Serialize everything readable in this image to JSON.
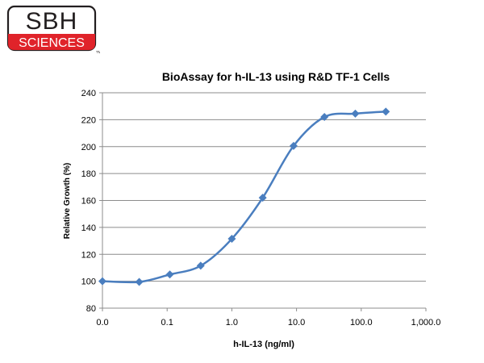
{
  "logo": {
    "line1": "SBH",
    "line2": "SCIENCES",
    "tm": "TM",
    "colors": {
      "red": "#e0232a",
      "dark": "#231f20"
    }
  },
  "chart_data": {
    "type": "line",
    "title": "BioAssay for h-IL-13 using R&D TF-1 Cells",
    "xlabel": "h-IL-13 (ng/ml)",
    "ylabel": "Relative Growth (%)",
    "x_scale": "log10",
    "xlim": [
      0.01,
      1000
    ],
    "ylim": [
      80,
      240
    ],
    "xticks": [
      0.01,
      0.1,
      1,
      10,
      100,
      1000
    ],
    "xtick_labels": [
      "0.0",
      "0.1",
      "1.0",
      "10.0",
      "100.0",
      "1,000.0"
    ],
    "yticks": [
      80,
      100,
      120,
      140,
      160,
      180,
      200,
      220,
      240
    ],
    "ytick_labels": [
      "80",
      "100",
      "120",
      "140",
      "160",
      "180",
      "200",
      "220",
      "240"
    ],
    "grid": {
      "horizontal": true,
      "vertical": false
    },
    "marker": "diamond",
    "smooth": true,
    "color": "#4a7ebf",
    "series": [
      {
        "x": [
          0.01,
          0.037,
          0.11,
          0.33,
          1.0,
          3.0,
          9.0,
          27.0,
          81.0,
          240.0
        ],
        "y": [
          100,
          99.5,
          105,
          111.5,
          131.5,
          162,
          200.5,
          222,
          224.5,
          226
        ]
      }
    ]
  }
}
